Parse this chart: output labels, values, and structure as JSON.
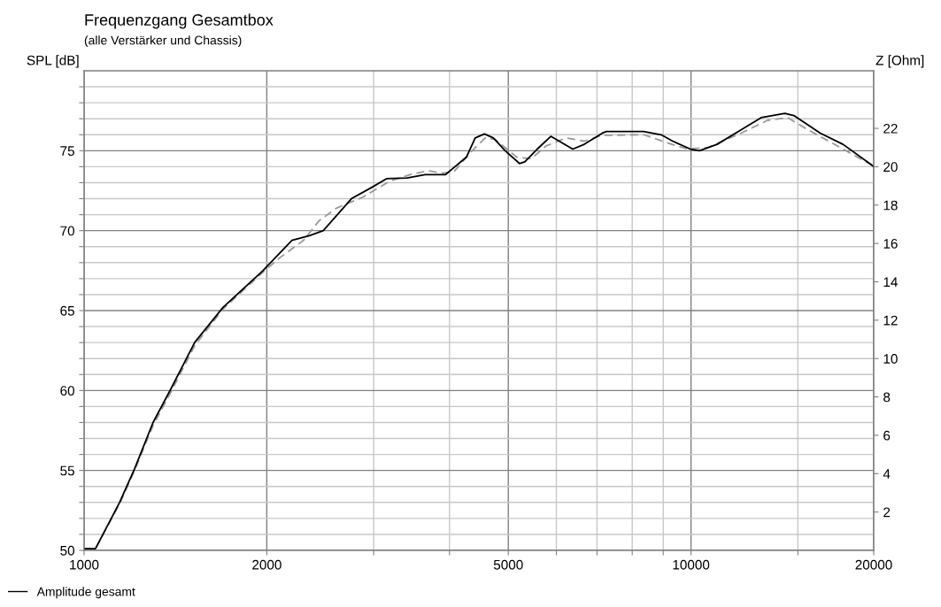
{
  "chart_data": {
    "type": "line",
    "title": "Frequenzgang Gesamtbox",
    "subtitle": "(alle Verstärker und Chassis)",
    "ylabel": "SPL [dB]",
    "y2label": "Z [Ohm]",
    "log": "x",
    "xlim": [
      1000,
      20000
    ],
    "ylim": [
      50,
      80
    ],
    "y2lim": [
      0,
      25
    ],
    "xticks": [
      1000,
      2000,
      {
        "value": 3000,
        "label": null
      },
      {
        "value": 4000,
        "label": null
      },
      5000,
      {
        "value": 6000,
        "label": null
      },
      {
        "value": 7000,
        "label": null
      },
      {
        "value": 8000,
        "label": null
      },
      {
        "value": 9000,
        "label": null
      },
      10000,
      {
        "value": 15000,
        "label": null
      },
      20000
    ],
    "yticks": [
      50,
      {
        "value": 51,
        "label": null
      },
      {
        "value": 52,
        "label": null
      },
      {
        "value": 53,
        "label": null
      },
      {
        "value": 54,
        "label": null
      },
      55,
      {
        "value": 56,
        "label": null
      },
      {
        "value": 57,
        "label": null
      },
      {
        "value": 58,
        "label": null
      },
      {
        "value": 59,
        "label": null
      },
      60,
      {
        "value": 61,
        "label": null
      },
      {
        "value": 62,
        "label": null
      },
      {
        "value": 63,
        "label": null
      },
      {
        "value": 64,
        "label": null
      },
      65,
      {
        "value": 66,
        "label": null
      },
      {
        "value": 67,
        "label": null
      },
      {
        "value": 68,
        "label": null
      },
      {
        "value": 69,
        "label": null
      },
      70,
      {
        "value": 71,
        "label": null
      },
      {
        "value": 72,
        "label": null
      },
      {
        "value": 73,
        "label": null
      },
      {
        "value": 74,
        "label": null
      },
      75,
      {
        "value": 76,
        "label": null
      },
      {
        "value": 77,
        "label": null
      },
      {
        "value": 78,
        "label": null
      },
      {
        "value": 79,
        "label": null
      }
    ],
    "y2ticks": [
      2,
      4,
      6,
      8,
      10,
      12,
      14,
      16,
      18,
      20,
      22
    ],
    "grid": true,
    "legend": "bottom left",
    "marker": "none",
    "series": [
      {
        "name": "Amplitude gesamt",
        "color": "#000000",
        "line_style": "solid",
        "x": [
          1000,
          1044,
          1144,
          1211,
          1299,
          1390,
          1521,
          1694,
          1971,
          2200,
          2356,
          2478,
          2757,
          2977,
          3150,
          3406,
          3645,
          3938,
          4265,
          4410,
          4567,
          4724,
          4941,
          5217,
          5323,
          5579,
          5875,
          6385,
          6670,
          7143,
          7254,
          8356,
          8929,
          9327,
          9980,
          10320,
          11040,
          12090,
          13050,
          14280,
          14770,
          16330,
          17800,
          19850,
          20000
        ],
        "values": [
          50.1,
          50.1,
          53.0,
          55.1,
          58.0,
          60.1,
          63.0,
          65.2,
          67.5,
          69.4,
          69.7,
          70.0,
          72.0,
          72.7,
          73.25,
          73.3,
          73.5,
          73.5,
          74.6,
          75.8,
          76.05,
          75.8,
          75.0,
          74.2,
          74.3,
          75.1,
          75.9,
          75.1,
          75.4,
          76.1,
          76.2,
          76.2,
          76.0,
          75.6,
          75.1,
          75.0,
          75.4,
          76.3,
          77.07,
          77.34,
          77.2,
          76.1,
          75.4,
          74.1,
          74.0
        ]
      },
      {
        "color": "#999999",
        "line_style": "dashed",
        "x": [
          1000,
          1044,
          1144,
          1211,
          1299,
          1390,
          1521,
          1694,
          1971,
          2100,
          2300,
          2436,
          2603,
          2880,
          3190,
          3443,
          3683,
          3900,
          4070,
          4360,
          4580,
          4760,
          5160,
          5456,
          5770,
          6230,
          6670,
          7143,
          8356,
          9120,
          9880,
          10670,
          12090,
          13370,
          14430,
          15600,
          17620,
          19850,
          20000
        ],
        "values": [
          50.1,
          50.1,
          52.9,
          55.0,
          57.8,
          59.9,
          62.8,
          65.1,
          67.4,
          68.3,
          69.4,
          70.6,
          71.4,
          72.1,
          73.1,
          73.5,
          73.75,
          73.6,
          73.7,
          75.0,
          75.8,
          75.7,
          74.6,
          74.5,
          75.3,
          75.8,
          75.6,
          75.96,
          76.0,
          75.5,
          75.1,
          75.2,
          76.1,
          76.9,
          77.07,
          76.3,
          75.2,
          74.1,
          74.0
        ]
      }
    ]
  }
}
